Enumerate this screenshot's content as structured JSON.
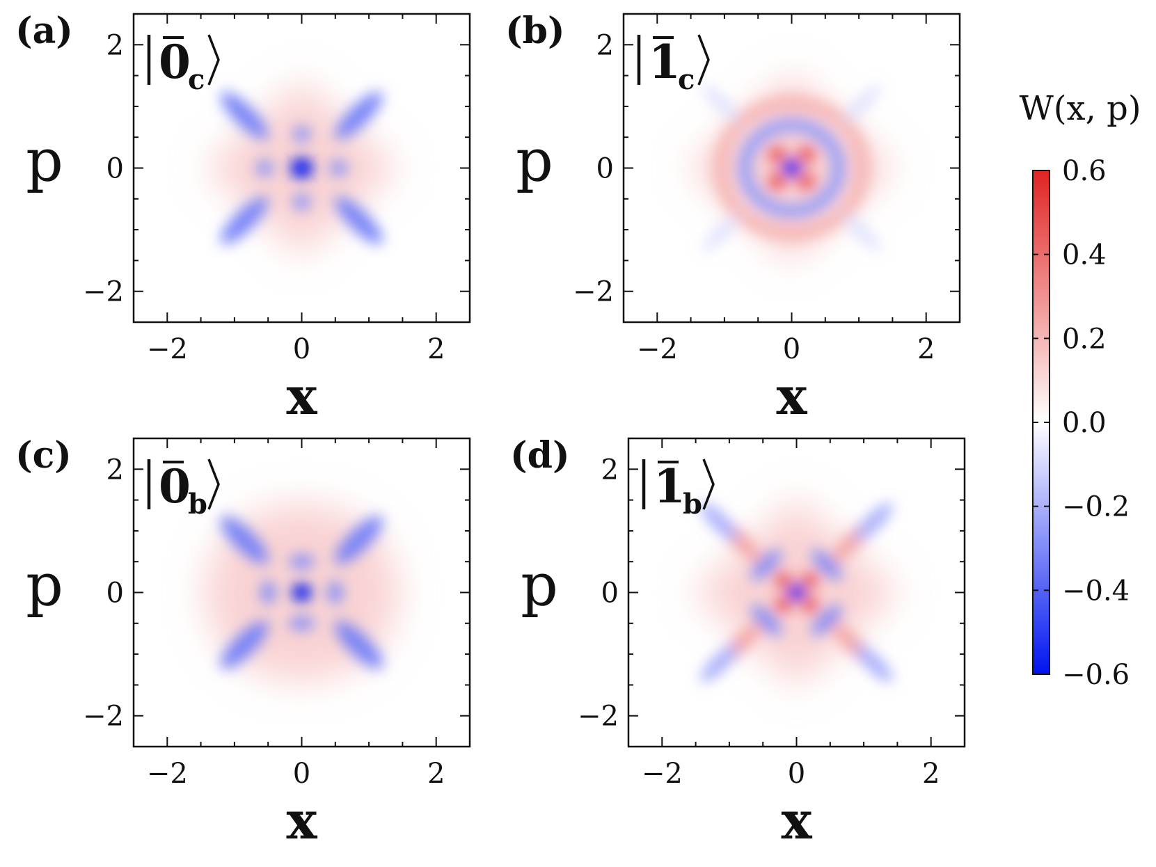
{
  "chart_data": {
    "type": "heatmap",
    "colorbar": {
      "label": "W(x, p)",
      "ticks": [
        "0.6",
        "0.4",
        "0.2",
        "0.0",
        "−0.2",
        "−0.4",
        "−0.6"
      ],
      "tick_values": [
        0.6,
        0.4,
        0.2,
        0.0,
        -0.2,
        -0.4,
        -0.6
      ],
      "range": [
        -0.6,
        0.6
      ],
      "colormap": "bwr"
    },
    "panels": [
      {
        "letter": "(a)",
        "state": {
          "base": "0",
          "sub": "c"
        },
        "xlabel": "x",
        "ylabel": "p",
        "xticks": [
          "−2",
          "0",
          "2"
        ],
        "yticks": [
          "2",
          "0",
          "−2"
        ],
        "xlim": [
          -2.5,
          2.5
        ],
        "ylim": [
          -2.5,
          2.5
        ]
      },
      {
        "letter": "(b)",
        "state": {
          "base": "1",
          "sub": "c"
        },
        "xlabel": "x",
        "ylabel": "p",
        "xticks": [
          "−2",
          "0",
          "2"
        ],
        "yticks": [
          "2",
          "0",
          "−2"
        ],
        "xlim": [
          -2.5,
          2.5
        ],
        "ylim": [
          -2.5,
          2.5
        ]
      },
      {
        "letter": "(c)",
        "state": {
          "base": "0",
          "sub": "b"
        },
        "xlabel": "x",
        "ylabel": "p",
        "xticks": [
          "−2",
          "0",
          "2"
        ],
        "yticks": [
          "2",
          "0",
          "−2"
        ],
        "xlim": [
          -2.5,
          2.5
        ],
        "ylim": [
          -2.5,
          2.5
        ]
      },
      {
        "letter": "(d)",
        "state": {
          "base": "1",
          "sub": "b"
        },
        "xlabel": "x",
        "ylabel": "p",
        "xticks": [
          "−2",
          "0",
          "2"
        ],
        "yticks": [
          "2",
          "0",
          "−2"
        ],
        "xlim": [
          -2.5,
          2.5
        ],
        "ylim": [
          -2.5,
          2.5
        ]
      }
    ],
    "features": [
      [
        {
          "shape": "circle",
          "x": 0,
          "p": 0,
          "r": 0.17,
          "w": -0.6
        },
        {
          "shape": "circle",
          "x": 0.55,
          "p": 0,
          "r": 0.13,
          "w": -0.28
        },
        {
          "shape": "circle",
          "x": -0.55,
          "p": 0,
          "r": 0.13,
          "w": -0.28
        },
        {
          "shape": "circle",
          "x": 0,
          "p": 0.55,
          "r": 0.13,
          "w": -0.28
        },
        {
          "shape": "circle",
          "x": 0,
          "p": -0.55,
          "r": 0.13,
          "w": -0.28
        },
        {
          "shape": "ellipse",
          "x": 0.85,
          "p": 0.85,
          "rx": 0.48,
          "ry": 0.16,
          "angle": 45,
          "w": -0.32
        },
        {
          "shape": "ellipse",
          "x": -0.85,
          "p": 0.85,
          "rx": 0.48,
          "ry": 0.16,
          "angle": -45,
          "w": -0.32
        },
        {
          "shape": "ellipse",
          "x": 0.85,
          "p": -0.85,
          "rx": 0.48,
          "ry": 0.16,
          "angle": -45,
          "w": -0.32
        },
        {
          "shape": "ellipse",
          "x": -0.85,
          "p": -0.85,
          "rx": 0.48,
          "ry": 0.16,
          "angle": 45,
          "w": -0.32
        }
      ],
      [
        {
          "shape": "circle",
          "x": 0,
          "p": 0,
          "r": 0.14,
          "w": -0.6
        },
        {
          "shape": "circle",
          "x": 0.22,
          "p": 0.22,
          "r": 0.14,
          "w": 0.45
        },
        {
          "shape": "circle",
          "x": -0.22,
          "p": 0.22,
          "r": 0.14,
          "w": 0.45
        },
        {
          "shape": "circle",
          "x": 0.22,
          "p": -0.22,
          "r": 0.14,
          "w": 0.45
        },
        {
          "shape": "circle",
          "x": -0.22,
          "p": -0.22,
          "r": 0.14,
          "w": 0.45
        },
        {
          "shape": "ring",
          "x": 0,
          "p": 0,
          "r": 0.7,
          "width": 0.2,
          "w": -0.25
        },
        {
          "shape": "ring",
          "x": 0,
          "p": 0,
          "r": 1.05,
          "width": 0.22,
          "w": 0.2
        },
        {
          "shape": "ellipse",
          "x": 1.05,
          "p": 1.05,
          "rx": 0.38,
          "ry": 0.1,
          "angle": 45,
          "w": -0.08
        },
        {
          "shape": "ellipse",
          "x": -1.05,
          "p": 1.05,
          "rx": 0.38,
          "ry": 0.1,
          "angle": -45,
          "w": -0.08
        },
        {
          "shape": "ellipse",
          "x": 1.05,
          "p": -1.05,
          "rx": 0.38,
          "ry": 0.1,
          "angle": -45,
          "w": -0.08
        },
        {
          "shape": "ellipse",
          "x": -1.05,
          "p": -1.05,
          "rx": 0.38,
          "ry": 0.1,
          "angle": 45,
          "w": -0.08
        }
      ],
      [
        {
          "shape": "circle",
          "x": 0,
          "p": 0,
          "r": 0.15,
          "w": -0.6
        },
        {
          "shape": "ellipse",
          "x": 0.5,
          "p": 0,
          "rx": 0.11,
          "ry": 0.19,
          "angle": 0,
          "w": -0.3
        },
        {
          "shape": "ellipse",
          "x": -0.5,
          "p": 0,
          "rx": 0.11,
          "ry": 0.19,
          "angle": 0,
          "w": -0.3
        },
        {
          "shape": "ellipse",
          "x": 0,
          "p": 0.5,
          "rx": 0.19,
          "ry": 0.11,
          "angle": 0,
          "w": -0.3
        },
        {
          "shape": "ellipse",
          "x": 0,
          "p": -0.5,
          "rx": 0.19,
          "ry": 0.11,
          "angle": 0,
          "w": -0.3
        },
        {
          "shape": "ellipse",
          "x": 0.85,
          "p": 0.85,
          "rx": 0.48,
          "ry": 0.17,
          "angle": 45,
          "w": -0.32
        },
        {
          "shape": "ellipse",
          "x": -0.85,
          "p": 0.85,
          "rx": 0.48,
          "ry": 0.17,
          "angle": -45,
          "w": -0.32
        },
        {
          "shape": "ellipse",
          "x": 0.85,
          "p": -0.85,
          "rx": 0.48,
          "ry": 0.17,
          "angle": -45,
          "w": -0.32
        },
        {
          "shape": "ellipse",
          "x": -0.85,
          "p": -0.85,
          "rx": 0.48,
          "ry": 0.17,
          "angle": 45,
          "w": -0.32
        }
      ],
      [
        {
          "shape": "circle",
          "x": 0,
          "p": 0,
          "r": 0.13,
          "w": -0.6
        },
        {
          "shape": "circle",
          "x": 0.2,
          "p": 0.2,
          "r": 0.13,
          "w": 0.45
        },
        {
          "shape": "circle",
          "x": -0.2,
          "p": 0.2,
          "r": 0.13,
          "w": 0.45
        },
        {
          "shape": "circle",
          "x": 0.2,
          "p": -0.2,
          "r": 0.13,
          "w": 0.45
        },
        {
          "shape": "circle",
          "x": -0.2,
          "p": -0.2,
          "r": 0.13,
          "w": 0.45
        },
        {
          "shape": "ellipse",
          "x": 0.45,
          "p": 0.45,
          "rx": 0.3,
          "ry": 0.12,
          "angle": -45,
          "w": -0.3
        },
        {
          "shape": "ellipse",
          "x": -0.45,
          "p": 0.45,
          "rx": 0.3,
          "ry": 0.12,
          "angle": 45,
          "w": -0.3
        },
        {
          "shape": "ellipse",
          "x": 0.45,
          "p": -0.45,
          "rx": 0.3,
          "ry": 0.12,
          "angle": 45,
          "w": -0.3
        },
        {
          "shape": "ellipse",
          "x": -0.45,
          "p": -0.45,
          "rx": 0.3,
          "ry": 0.12,
          "angle": -45,
          "w": -0.3
        },
        {
          "shape": "ellipse",
          "x": 0.85,
          "p": 0.85,
          "rx": 0.45,
          "ry": 0.13,
          "angle": 45,
          "w": 0.25
        },
        {
          "shape": "ellipse",
          "x": -0.85,
          "p": 0.85,
          "rx": 0.45,
          "ry": 0.13,
          "angle": -45,
          "w": 0.25
        },
        {
          "shape": "ellipse",
          "x": 0.85,
          "p": -0.85,
          "rx": 0.45,
          "ry": 0.13,
          "angle": -45,
          "w": 0.25
        },
        {
          "shape": "ellipse",
          "x": -0.85,
          "p": -0.85,
          "rx": 0.45,
          "ry": 0.13,
          "angle": 45,
          "w": 0.25
        },
        {
          "shape": "ellipse",
          "x": 1.15,
          "p": 1.15,
          "rx": 0.38,
          "ry": 0.12,
          "angle": 45,
          "w": -0.22
        },
        {
          "shape": "ellipse",
          "x": -1.15,
          "p": 1.15,
          "rx": 0.38,
          "ry": 0.12,
          "angle": -45,
          "w": -0.22
        },
        {
          "shape": "ellipse",
          "x": 1.15,
          "p": -1.15,
          "rx": 0.38,
          "ry": 0.12,
          "angle": -45,
          "w": -0.22
        },
        {
          "shape": "ellipse",
          "x": -1.15,
          "p": -1.15,
          "rx": 0.38,
          "ry": 0.12,
          "angle": 45,
          "w": -0.22
        }
      ]
    ],
    "envelope": [
      {
        "shape": "diamond",
        "x": 0,
        "p": 0,
        "size": 1.45,
        "w": 0.12
      },
      {
        "shape": "diamond",
        "x": 0,
        "p": 0,
        "size": 1.55,
        "w": 0.12
      },
      {
        "shape": "circle",
        "x": 0,
        "p": 0,
        "r": 1.45,
        "w": 0.12
      },
      {
        "shape": "diamond",
        "x": 0,
        "p": 0,
        "size": 1.55,
        "w": 0.12
      }
    ]
  }
}
